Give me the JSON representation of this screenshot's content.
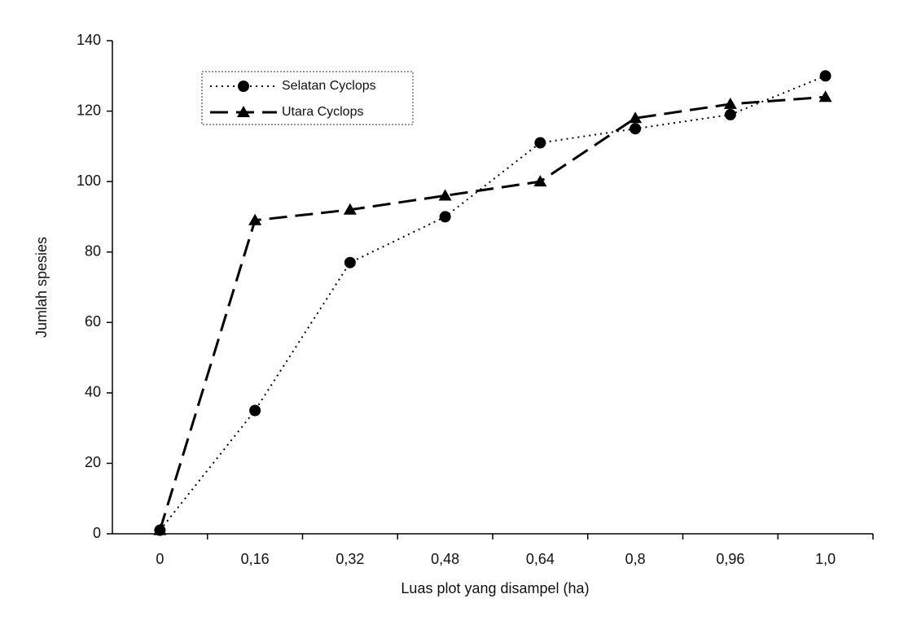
{
  "chart_data": {
    "type": "line",
    "x_label": "Luas plot yang disampel (ha)",
    "y_label": "Jumlah spesies",
    "categories": [
      "0",
      "0,16",
      "0,32",
      "0,48",
      "0,64",
      "0,8",
      "0,96",
      "1,0"
    ],
    "series": [
      {
        "name": "Selatan Cyclops",
        "color": "#000000",
        "line_style": "dotted",
        "marker": "circle",
        "values": [
          1,
          35,
          77,
          90,
          111,
          115,
          119,
          130
        ]
      },
      {
        "name": "Utara Cyclops",
        "color": "#000000",
        "line_style": "dashed",
        "marker": "triangle",
        "values": [
          1,
          89,
          92,
          96,
          100,
          118,
          122,
          124
        ]
      }
    ],
    "ylim": [
      0,
      140
    ],
    "yticks": [
      0,
      20,
      40,
      60,
      80,
      100,
      120,
      140
    ],
    "grid": false
  }
}
